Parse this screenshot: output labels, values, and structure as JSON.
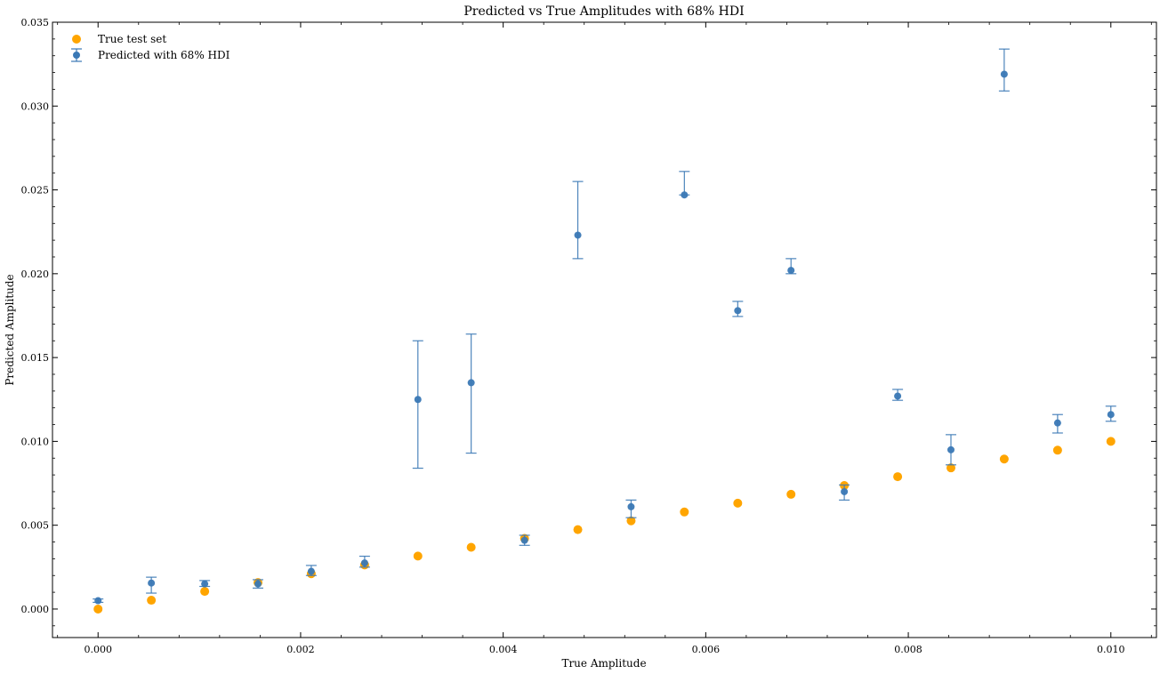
{
  "chart_data": {
    "type": "scatter",
    "title": "Predicted vs True Amplitudes with 68% HDI",
    "xlabel": "True Amplitude",
    "ylabel": "Predicted Amplitude",
    "xlim": [
      -0.00045,
      0.01045
    ],
    "ylim": [
      -0.0017,
      0.035
    ],
    "xticks": [
      0.0,
      0.002,
      0.004,
      0.006,
      0.008,
      0.01
    ],
    "xtick_labels": [
      "0.000",
      "0.002",
      "0.004",
      "0.006",
      "0.008",
      "0.010"
    ],
    "yticks": [
      0.0,
      0.005,
      0.01,
      0.015,
      0.02,
      0.025,
      0.03,
      0.035
    ],
    "ytick_labels": [
      "0.000",
      "0.005",
      "0.010",
      "0.015",
      "0.020",
      "0.025",
      "0.030",
      "0.035"
    ],
    "legend_position": "top-left",
    "grid": false,
    "series": [
      {
        "name": "True test set",
        "kind": "scatter",
        "color": "#ffa500",
        "points": [
          {
            "x": 0.0,
            "y": 0.0
          },
          {
            "x": 0.000526,
            "y": 0.000526
          },
          {
            "x": 0.001053,
            "y": 0.001053
          },
          {
            "x": 0.001579,
            "y": 0.001579
          },
          {
            "x": 0.002105,
            "y": 0.002105
          },
          {
            "x": 0.002632,
            "y": 0.002632
          },
          {
            "x": 0.003158,
            "y": 0.003158
          },
          {
            "x": 0.003684,
            "y": 0.003684
          },
          {
            "x": 0.004211,
            "y": 0.004211
          },
          {
            "x": 0.004737,
            "y": 0.004737
          },
          {
            "x": 0.005263,
            "y": 0.005263
          },
          {
            "x": 0.005789,
            "y": 0.005789
          },
          {
            "x": 0.006316,
            "y": 0.006316
          },
          {
            "x": 0.006842,
            "y": 0.006842
          },
          {
            "x": 0.007368,
            "y": 0.007368
          },
          {
            "x": 0.007895,
            "y": 0.007895
          },
          {
            "x": 0.008421,
            "y": 0.008421
          },
          {
            "x": 0.008947,
            "y": 0.008947
          },
          {
            "x": 0.009474,
            "y": 0.009474
          },
          {
            "x": 0.01,
            "y": 0.01
          }
        ]
      },
      {
        "name": "Predicted with 68% HDI",
        "kind": "errorbar",
        "color": "#3a78b5",
        "points": [
          {
            "x": 0.0,
            "y": 0.0005,
            "lo": 0.0004,
            "hi": 0.0006
          },
          {
            "x": 0.000526,
            "y": 0.00155,
            "lo": 0.00095,
            "hi": 0.0019
          },
          {
            "x": 0.001053,
            "y": 0.0015,
            "lo": 0.00135,
            "hi": 0.0017
          },
          {
            "x": 0.001579,
            "y": 0.0015,
            "lo": 0.00125,
            "hi": 0.00175
          },
          {
            "x": 0.002105,
            "y": 0.00225,
            "lo": 0.002,
            "hi": 0.0026
          },
          {
            "x": 0.002632,
            "y": 0.00275,
            "lo": 0.0025,
            "hi": 0.00315
          },
          {
            "x": 0.003158,
            "y": 0.0125,
            "lo": 0.0084,
            "hi": 0.016
          },
          {
            "x": 0.003684,
            "y": 0.0135,
            "lo": 0.0093,
            "hi": 0.0164
          },
          {
            "x": 0.004211,
            "y": 0.0041,
            "lo": 0.0038,
            "hi": 0.0044
          },
          {
            "x": 0.004737,
            "y": 0.0223,
            "lo": 0.0209,
            "hi": 0.0255
          },
          {
            "x": 0.005263,
            "y": 0.0061,
            "lo": 0.00545,
            "hi": 0.0065
          },
          {
            "x": 0.005789,
            "y": 0.0247,
            "lo": 0.0247,
            "hi": 0.0261
          },
          {
            "x": 0.006316,
            "y": 0.0178,
            "lo": 0.01745,
            "hi": 0.01835
          },
          {
            "x": 0.006842,
            "y": 0.0202,
            "lo": 0.02,
            "hi": 0.0209
          },
          {
            "x": 0.007368,
            "y": 0.007,
            "lo": 0.0065,
            "hi": 0.0074
          },
          {
            "x": 0.007895,
            "y": 0.0127,
            "lo": 0.01245,
            "hi": 0.0131
          },
          {
            "x": 0.008421,
            "y": 0.0095,
            "lo": 0.0086,
            "hi": 0.0104
          },
          {
            "x": 0.008947,
            "y": 0.0319,
            "lo": 0.0309,
            "hi": 0.0334
          },
          {
            "x": 0.009474,
            "y": 0.0111,
            "lo": 0.0105,
            "hi": 0.0116
          },
          {
            "x": 0.01,
            "y": 0.0116,
            "lo": 0.0112,
            "hi": 0.0121
          }
        ]
      }
    ]
  }
}
